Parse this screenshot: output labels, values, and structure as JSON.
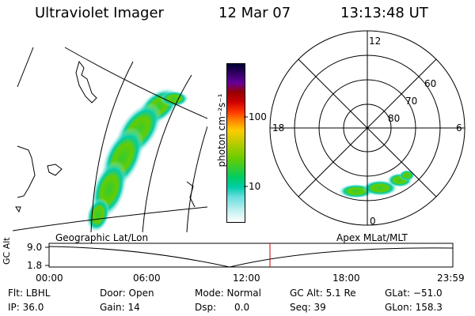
{
  "header": {
    "instrument": "Ultraviolet Imager",
    "date": "12 Mar 07",
    "time": "13:13:48 UT"
  },
  "geo_panel": {
    "label": "Geographic Lat/Lon"
  },
  "polar_panel": {
    "label": "Apex MLat/MLT",
    "mlt_labels": [
      "12",
      "18",
      "6",
      "0"
    ],
    "lat_labels": [
      "60",
      "70",
      "80"
    ]
  },
  "colorbar": {
    "unit": "photon cm⁻²s⁻¹",
    "ticks": [
      "100",
      "10"
    ],
    "colors": [
      "#000033",
      "#330066",
      "#660099",
      "#990000",
      "#cc0000",
      "#ff3300",
      "#ff8800",
      "#ffcc00",
      "#cccc00",
      "#99cc00",
      "#66cc00",
      "#33cc33",
      "#00cc66",
      "#00ccaa",
      "#66dddd",
      "#bbeeee",
      "#ffffff"
    ]
  },
  "altitude_plot": {
    "ylabel": "GC Alt",
    "y_ticks": [
      "9.0",
      "1.8"
    ],
    "x_ticks": [
      "00:00",
      "06:00",
      "12:00",
      "18:00",
      "23:59"
    ],
    "current_marker_time": "13:13:48"
  },
  "info": {
    "flt": "Flt: LBHL",
    "door": "Door: Open",
    "mode": "Mode: Normal",
    "gc_alt": "GC Alt: 5.1 Re",
    "glat": "GLat: −51.0",
    "ip": "IP: 36.0",
    "gain": "Gain: 14",
    "dsp": "Dsp:      0.0",
    "seq": "Seq: 39",
    "glon": "GLon: 158.3"
  },
  "accent_colors": {
    "marker": "#cc0000",
    "aurora_core": "#66cc00",
    "aurora_edge": "#00ccaa"
  }
}
